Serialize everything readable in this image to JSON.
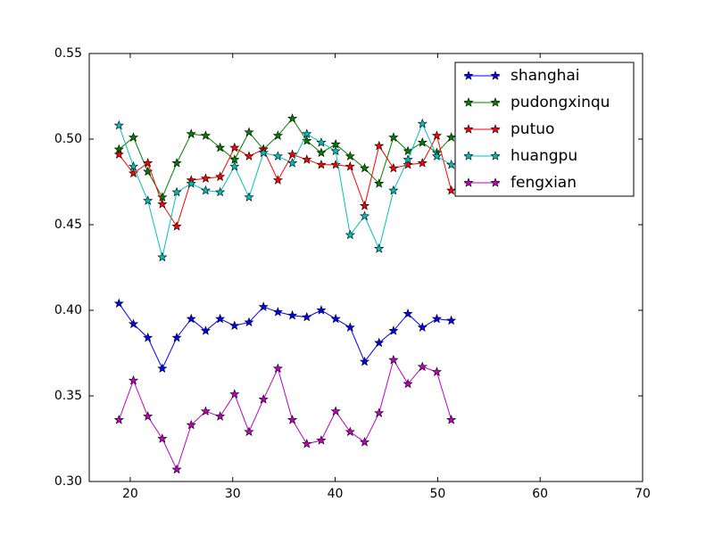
{
  "chart_data": {
    "type": "line",
    "x": [
      18.9,
      20.31,
      21.72,
      23.13,
      24.54,
      25.95,
      27.36,
      28.77,
      30.18,
      31.59,
      33.0,
      34.41,
      35.82,
      37.23,
      38.64,
      40.05,
      41.46,
      42.87,
      44.28,
      45.69,
      47.1,
      48.51,
      49.92,
      51.33
    ],
    "series": [
      {
        "name": "shanghai",
        "color": "#0000ff",
        "values": [
          0.404,
          0.392,
          0.384,
          0.366,
          0.384,
          0.395,
          0.388,
          0.395,
          0.391,
          0.393,
          0.402,
          0.399,
          0.397,
          0.396,
          0.4,
          0.395,
          0.39,
          0.37,
          0.381,
          0.388,
          0.398,
          0.39,
          0.395,
          0.394
        ]
      },
      {
        "name": "pudongxinqu",
        "color": "#008000",
        "values": [
          0.494,
          0.501,
          0.481,
          0.466,
          0.486,
          0.503,
          0.502,
          0.495,
          0.488,
          0.504,
          0.494,
          0.502,
          0.512,
          0.499,
          0.492,
          0.497,
          0.49,
          0.483,
          0.474,
          0.501,
          0.493,
          0.498,
          0.492,
          0.501
        ]
      },
      {
        "name": "putuo",
        "color": "#ff0000",
        "values": [
          0.491,
          0.48,
          0.486,
          0.462,
          0.449,
          0.476,
          0.477,
          0.478,
          0.495,
          0.49,
          0.494,
          0.476,
          0.491,
          0.488,
          0.485,
          0.485,
          0.484,
          0.461,
          0.496,
          0.483,
          0.485,
          0.486,
          0.502,
          0.47
        ]
      },
      {
        "name": "huangpu",
        "color": "#00bfbf",
        "values": [
          0.508,
          0.484,
          0.464,
          0.431,
          0.469,
          0.474,
          0.47,
          0.469,
          0.484,
          0.466,
          0.492,
          0.49,
          0.486,
          0.503,
          0.498,
          0.493,
          0.444,
          0.455,
          0.436,
          0.47,
          0.488,
          0.509,
          0.49,
          0.485
        ]
      },
      {
        "name": "fengxian",
        "color": "#bf00bf",
        "values": [
          0.336,
          0.359,
          0.338,
          0.325,
          0.307,
          0.333,
          0.341,
          0.338,
          0.351,
          0.329,
          0.348,
          0.366,
          0.336,
          0.322,
          0.324,
          0.341,
          0.329,
          0.323,
          0.34,
          0.371,
          0.357,
          0.367,
          0.364,
          0.336
        ]
      }
    ],
    "xlim": [
      16,
      70
    ],
    "xticks": [
      20,
      30,
      40,
      50,
      60,
      70
    ],
    "ylim": [
      0.3,
      0.55
    ],
    "yticks": [
      {
        "value": 0.3,
        "label": "0.30"
      },
      0.35,
      {
        "value": 0.4,
        "label": "0.40"
      },
      0.45,
      {
        "value": 0.5,
        "label": "0.50"
      },
      0.55
    ],
    "legend": "upper right",
    "grid": false
  }
}
